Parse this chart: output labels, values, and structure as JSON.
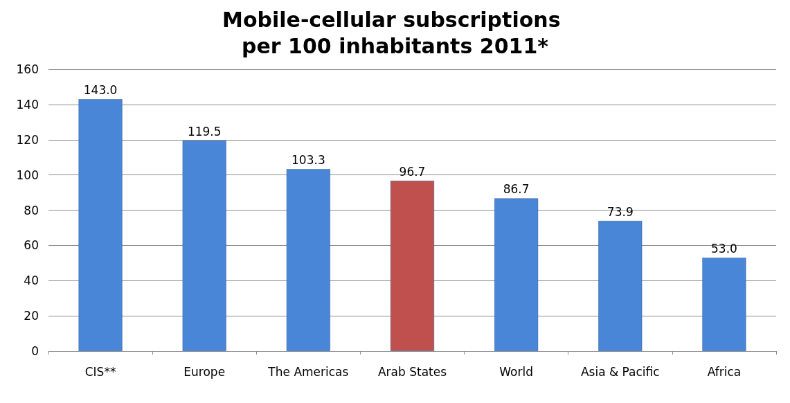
{
  "chart_data": {
    "type": "bar",
    "title": "Mobile-cellular subscriptions per 100 inhabitants 2011*",
    "categories": [
      "CIS**",
      "Europe",
      "The Americas",
      "Arab States",
      "World",
      "Asia & Pacific",
      "Africa"
    ],
    "values": [
      143.0,
      119.5,
      103.3,
      96.7,
      86.7,
      73.9,
      53.0
    ],
    "value_labels": [
      "143.0",
      "119.5",
      "103.3",
      "96.7",
      "86.7",
      "73.9",
      "53.0"
    ],
    "colors": [
      "#4a86d8",
      "#4a86d8",
      "#4a86d8",
      "#c0504d",
      "#4a86d8",
      "#4a86d8",
      "#4a86d8"
    ],
    "ylim": [
      0,
      160
    ],
    "yticks": [
      0,
      20,
      40,
      60,
      80,
      100,
      120,
      140,
      160
    ],
    "grid": "y"
  }
}
